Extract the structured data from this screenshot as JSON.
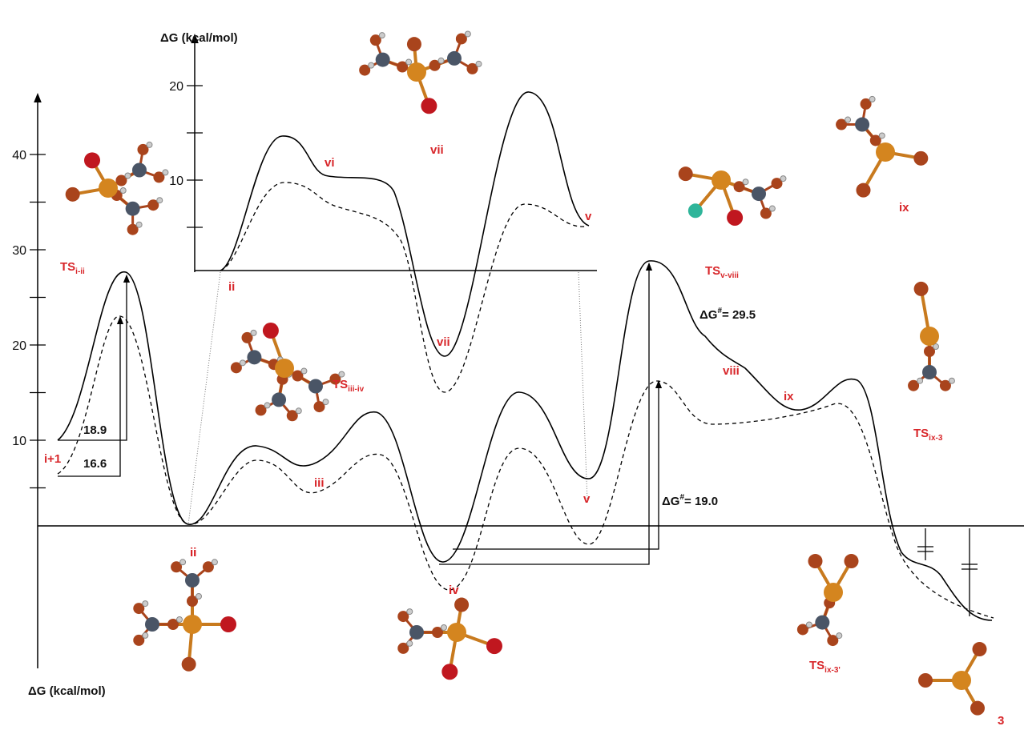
{
  "main_axis": {
    "label": "ΔG (kcal/mol)",
    "ticks": [
      10,
      20,
      30,
      40
    ],
    "minor_ticks": [
      5,
      15,
      25,
      35
    ]
  },
  "inset_axis": {
    "label": "ΔG (kcal/mol)",
    "ticks": [
      10,
      20
    ],
    "minor_ticks": [
      5,
      15
    ]
  },
  "barriers": {
    "first_solid": "18.9",
    "first_dashed": "16.6",
    "solid": "ΔG",
    "solid_sup": "#",
    "solid_value": "= 29.5",
    "dashed": "ΔG",
    "dashed_sup": "#",
    "dashed_value": "= 19.0"
  },
  "labels": {
    "i_plus_1": "i+1",
    "ii": "ii",
    "iii": "iii",
    "iv": "iv",
    "v": "v",
    "viii": "viii",
    "ix": "ix",
    "inset_ii": "ii",
    "inset_vi": "vi",
    "inset_vii": "vii",
    "inset_v": "v",
    "mol_vii": "vii",
    "mol_ii": "ii",
    "mol_iv": "iv",
    "mol_ix": "ix",
    "mol_3": "3",
    "ts_i_ii": {
      "base": "TS",
      "sub": "i-ii"
    },
    "ts_iii_iv": {
      "base": "TS",
      "sub": "iii-iv"
    },
    "ts_v_viii": {
      "base": "TS",
      "sub": "v-viii"
    },
    "ts_ix_3": {
      "base": "TS",
      "sub": "ix-3"
    },
    "ts_ix_3p": {
      "base": "TS",
      "sub": "ix-3'"
    }
  }
}
